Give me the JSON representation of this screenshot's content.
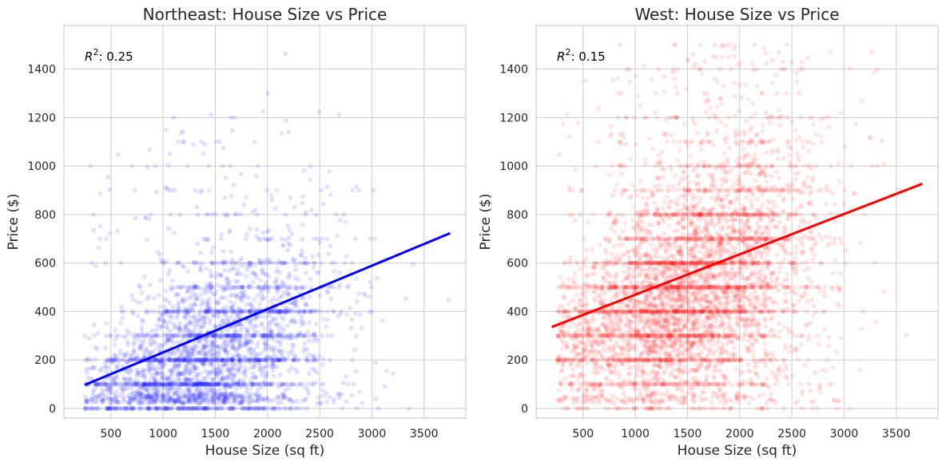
{
  "chart_data": [
    {
      "type": "scatter",
      "title": "Northeast: House Size vs Price",
      "xlabel": "House Size (sq ft)",
      "ylabel": "Price ($)",
      "xlim": [
        50,
        3900
      ],
      "ylim": [
        -40,
        1580
      ],
      "xticks": [
        500,
        1000,
        1500,
        2000,
        2500,
        3000,
        3500
      ],
      "yticks": [
        0,
        200,
        400,
        600,
        800,
        1000,
        1200,
        1400
      ],
      "grid": true,
      "color": "#0000ff",
      "annotation": {
        "prefix": "R",
        "sup": "2",
        "suffix": ": 0.25",
        "value": 0.25
      },
      "scatter": {
        "count": 3200,
        "x_center": 1450,
        "x_spread": 600,
        "x_min": 250,
        "x_max": 3750,
        "y_base": 150,
        "y_slope": 0.14,
        "y_spread": 170,
        "y_max": 1500,
        "opacity": 0.11
      },
      "regression": {
        "x": [
          250,
          3750
        ],
        "y": [
          97,
          723
        ]
      }
    },
    {
      "type": "scatter",
      "title": "West: House Size vs Price",
      "xlabel": "House Size (sq ft)",
      "ylabel": "Price ($)",
      "xlim": [
        50,
        3900
      ],
      "ylim": [
        -40,
        1580
      ],
      "xticks": [
        500,
        1000,
        1500,
        2000,
        2500,
        3000,
        3500
      ],
      "yticks": [
        0,
        200,
        400,
        600,
        800,
        1000,
        1200,
        1400
      ],
      "grid": true,
      "color": "#ff0000",
      "annotation": {
        "prefix": "R",
        "sup": "2",
        "suffix": ": 0.15",
        "value": 0.15
      },
      "scatter": {
        "count": 5200,
        "x_center": 1500,
        "x_spread": 620,
        "x_min": 250,
        "x_max": 3750,
        "y_base": 380,
        "y_slope": 0.16,
        "y_spread": 230,
        "y_max": 1500,
        "opacity": 0.1
      },
      "regression": {
        "x": [
          200,
          3750
        ],
        "y": [
          336,
          927
        ]
      }
    }
  ]
}
